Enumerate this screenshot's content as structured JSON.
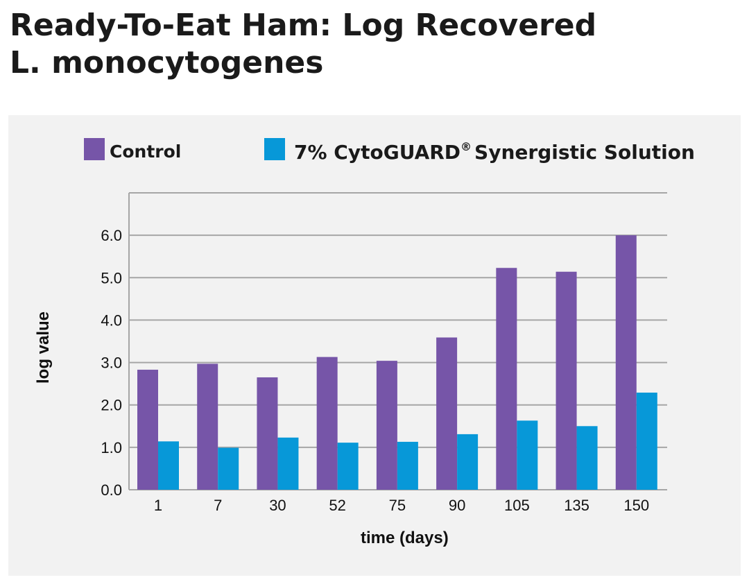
{
  "title_line1": "Ready-To-Eat Ham: Log Recovered",
  "title_line2": "L. monocytogenes",
  "colors": {
    "control": "#7655a8",
    "treatment": "#0798d8",
    "grid": "#a6a6a6",
    "panel": "#f2f2f2"
  },
  "chart_data": {
    "type": "bar",
    "categories": [
      "1",
      "7",
      "30",
      "52",
      "75",
      "90",
      "105",
      "135",
      "150"
    ],
    "series": [
      {
        "name": "Control",
        "values": [
          2.83,
          2.97,
          2.65,
          3.13,
          3.04,
          3.59,
          5.23,
          5.14,
          6.0
        ]
      },
      {
        "name": "7% CytoGUARD® Synergistic Solution",
        "values": [
          1.14,
          0.99,
          1.23,
          1.11,
          1.13,
          1.31,
          1.63,
          1.5,
          2.29
        ]
      }
    ],
    "title": "Ready-To-Eat Ham: Log Recovered L. monocytogenes",
    "xlabel": "time (days)",
    "ylabel": "log value",
    "ylim": [
      0,
      7
    ],
    "yticks": [
      "0.0",
      "1.0",
      "2.0",
      "3.0",
      "4.0",
      "5.0",
      "6.0"
    ],
    "legend": {
      "control_label": "Control",
      "treatment_prefix": "7% CytoGUARD",
      "treatment_mark": "®",
      "treatment_suffix": "Synergistic Solution",
      "position": "top"
    }
  }
}
